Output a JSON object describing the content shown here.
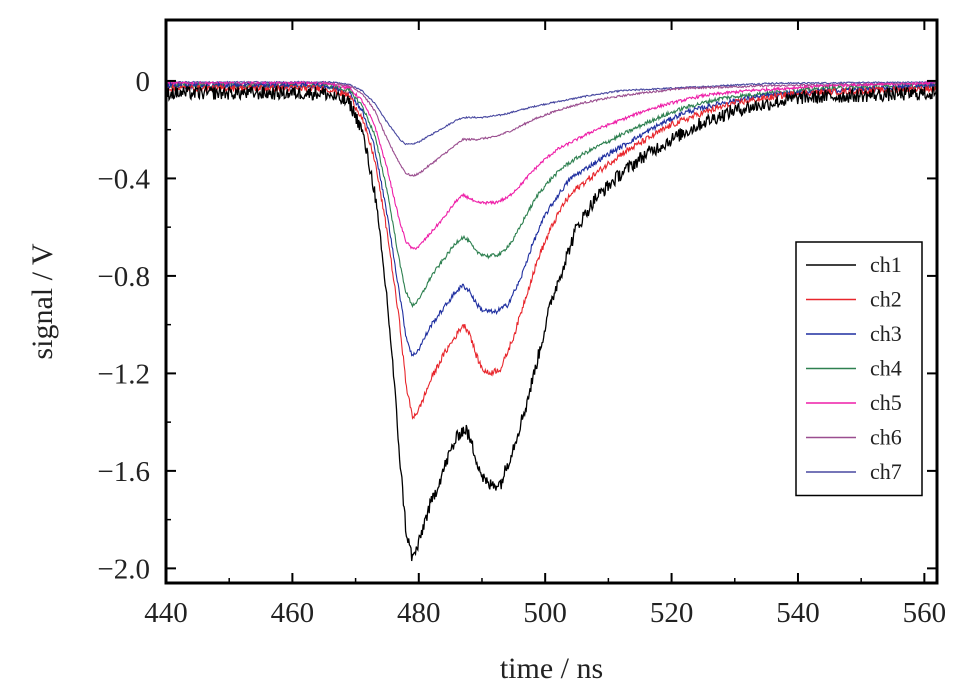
{
  "chart_data": {
    "type": "line",
    "xlabel": "time / ns",
    "ylabel": "signal / V",
    "xlim": [
      440,
      562
    ],
    "ylim": [
      -2.06,
      0.25
    ],
    "x_ticks": [
      440,
      460,
      480,
      500,
      520,
      540,
      560
    ],
    "x_tick_labels": [
      "440",
      "460",
      "480",
      "500",
      "520",
      "540",
      "560"
    ],
    "y_ticks": [
      0,
      -0.4,
      -0.8,
      -1.2,
      -1.6,
      -2.0
    ],
    "y_tick_labels": [
      "0",
      "−0.4",
      "−0.8",
      "−1.2",
      "−1.6",
      "−2.0"
    ],
    "grid": false,
    "legend_position": "right",
    "series": [
      {
        "name": "ch1",
        "color": "#000000",
        "noise": 0.028,
        "points": [
          [
            440,
            -0.05
          ],
          [
            465,
            -0.05
          ],
          [
            469,
            -0.09
          ],
          [
            471,
            -0.2
          ],
          [
            473,
            -0.45
          ],
          [
            475,
            -0.9
          ],
          [
            476,
            -1.2
          ],
          [
            477,
            -1.55
          ],
          [
            478,
            -1.85
          ],
          [
            479,
            -1.96
          ],
          [
            480,
            -1.9
          ],
          [
            481,
            -1.8
          ],
          [
            483,
            -1.66
          ],
          [
            485,
            -1.52
          ],
          [
            486.5,
            -1.44
          ],
          [
            487.5,
            -1.43
          ],
          [
            488.5,
            -1.5
          ],
          [
            490,
            -1.62
          ],
          [
            491,
            -1.66
          ],
          [
            493,
            -1.65
          ],
          [
            495,
            -1.5
          ],
          [
            497,
            -1.33
          ],
          [
            499,
            -1.12
          ],
          [
            501,
            -0.9
          ],
          [
            503,
            -0.75
          ],
          [
            505,
            -0.6
          ],
          [
            508,
            -0.48
          ],
          [
            512,
            -0.38
          ],
          [
            516,
            -0.3
          ],
          [
            520,
            -0.24
          ],
          [
            525,
            -0.17
          ],
          [
            530,
            -0.12
          ],
          [
            540,
            -0.07
          ],
          [
            550,
            -0.06
          ],
          [
            562,
            -0.05
          ]
        ]
      },
      {
        "name": "ch2",
        "color": "#e8262c",
        "noise": 0.013,
        "points": [
          [
            440,
            -0.03
          ],
          [
            465,
            -0.03
          ],
          [
            469,
            -0.06
          ],
          [
            471,
            -0.15
          ],
          [
            473,
            -0.32
          ],
          [
            475,
            -0.62
          ],
          [
            477,
            -1.0
          ],
          [
            478,
            -1.25
          ],
          [
            479,
            -1.38
          ],
          [
            480,
            -1.35
          ],
          [
            482,
            -1.22
          ],
          [
            484,
            -1.12
          ],
          [
            486,
            -1.04
          ],
          [
            487,
            -1.0
          ],
          [
            488,
            -1.03
          ],
          [
            489,
            -1.12
          ],
          [
            490,
            -1.18
          ],
          [
            491,
            -1.2
          ],
          [
            493,
            -1.18
          ],
          [
            495,
            -1.05
          ],
          [
            497,
            -0.88
          ],
          [
            499,
            -0.72
          ],
          [
            501,
            -0.6
          ],
          [
            503,
            -0.5
          ],
          [
            505,
            -0.44
          ],
          [
            508,
            -0.38
          ],
          [
            512,
            -0.3
          ],
          [
            516,
            -0.24
          ],
          [
            520,
            -0.18
          ],
          [
            525,
            -0.13
          ],
          [
            530,
            -0.09
          ],
          [
            540,
            -0.05
          ],
          [
            562,
            -0.03
          ]
        ]
      },
      {
        "name": "ch3",
        "color": "#1f2fa0",
        "noise": 0.01,
        "points": [
          [
            440,
            -0.02
          ],
          [
            465,
            -0.02
          ],
          [
            469,
            -0.05
          ],
          [
            471,
            -0.12
          ],
          [
            473,
            -0.27
          ],
          [
            475,
            -0.55
          ],
          [
            477,
            -0.88
          ],
          [
            478,
            -1.05
          ],
          [
            479,
            -1.13
          ],
          [
            480,
            -1.1
          ],
          [
            482,
            -1.0
          ],
          [
            484,
            -0.93
          ],
          [
            486,
            -0.86
          ],
          [
            487,
            -0.84
          ],
          [
            488,
            -0.86
          ],
          [
            489,
            -0.91
          ],
          [
            490,
            -0.94
          ],
          [
            492,
            -0.95
          ],
          [
            494,
            -0.92
          ],
          [
            496,
            -0.82
          ],
          [
            498,
            -0.67
          ],
          [
            500,
            -0.55
          ],
          [
            502,
            -0.47
          ],
          [
            504,
            -0.4
          ],
          [
            507,
            -0.35
          ],
          [
            510,
            -0.3
          ],
          [
            514,
            -0.24
          ],
          [
            518,
            -0.18
          ],
          [
            522,
            -0.13
          ],
          [
            528,
            -0.09
          ],
          [
            535,
            -0.06
          ],
          [
            545,
            -0.04
          ],
          [
            562,
            -0.02
          ]
        ]
      },
      {
        "name": "ch4",
        "color": "#2e8050",
        "noise": 0.008,
        "points": [
          [
            440,
            -0.02
          ],
          [
            465,
            -0.02
          ],
          [
            469,
            -0.04
          ],
          [
            471,
            -0.1
          ],
          [
            473,
            -0.22
          ],
          [
            475,
            -0.45
          ],
          [
            477,
            -0.75
          ],
          [
            478,
            -0.87
          ],
          [
            479,
            -0.92
          ],
          [
            480,
            -0.9
          ],
          [
            482,
            -0.8
          ],
          [
            484,
            -0.73
          ],
          [
            486,
            -0.66
          ],
          [
            487,
            -0.64
          ],
          [
            488,
            -0.66
          ],
          [
            489,
            -0.7
          ],
          [
            491,
            -0.72
          ],
          [
            493,
            -0.71
          ],
          [
            495,
            -0.65
          ],
          [
            497,
            -0.55
          ],
          [
            499,
            -0.46
          ],
          [
            501,
            -0.4
          ],
          [
            503,
            -0.35
          ],
          [
            506,
            -0.3
          ],
          [
            509,
            -0.26
          ],
          [
            513,
            -0.21
          ],
          [
            517,
            -0.16
          ],
          [
            522,
            -0.11
          ],
          [
            528,
            -0.07
          ],
          [
            535,
            -0.05
          ],
          [
            545,
            -0.03
          ],
          [
            562,
            -0.02
          ]
        ]
      },
      {
        "name": "ch5",
        "color": "#ee1fa8",
        "noise": 0.006,
        "points": [
          [
            440,
            -0.01
          ],
          [
            465,
            -0.01
          ],
          [
            469,
            -0.03
          ],
          [
            471,
            -0.08
          ],
          [
            473,
            -0.18
          ],
          [
            475,
            -0.36
          ],
          [
            477,
            -0.58
          ],
          [
            478,
            -0.66
          ],
          [
            479,
            -0.69
          ],
          [
            480,
            -0.68
          ],
          [
            482,
            -0.62
          ],
          [
            484,
            -0.56
          ],
          [
            486,
            -0.49
          ],
          [
            487,
            -0.47
          ],
          [
            488,
            -0.48
          ],
          [
            489,
            -0.5
          ],
          [
            492,
            -0.5
          ],
          [
            494,
            -0.48
          ],
          [
            496,
            -0.43
          ],
          [
            498,
            -0.37
          ],
          [
            500,
            -0.32
          ],
          [
            502,
            -0.28
          ],
          [
            505,
            -0.24
          ],
          [
            508,
            -0.2
          ],
          [
            512,
            -0.16
          ],
          [
            516,
            -0.12
          ],
          [
            520,
            -0.09
          ],
          [
            525,
            -0.06
          ],
          [
            532,
            -0.04
          ],
          [
            545,
            -0.02
          ],
          [
            562,
            -0.01
          ]
        ]
      },
      {
        "name": "ch6",
        "color": "#9a4e8f",
        "noise": 0.004,
        "points": [
          [
            440,
            -0.01
          ],
          [
            466,
            -0.01
          ],
          [
            469,
            -0.02
          ],
          [
            471,
            -0.05
          ],
          [
            473,
            -0.12
          ],
          [
            475,
            -0.24
          ],
          [
            477,
            -0.34
          ],
          [
            478,
            -0.38
          ],
          [
            479,
            -0.39
          ],
          [
            480,
            -0.38
          ],
          [
            482,
            -0.34
          ],
          [
            484,
            -0.3
          ],
          [
            486,
            -0.26
          ],
          [
            487,
            -0.24
          ],
          [
            489,
            -0.24
          ],
          [
            492,
            -0.23
          ],
          [
            495,
            -0.2
          ],
          [
            498,
            -0.16
          ],
          [
            502,
            -0.12
          ],
          [
            506,
            -0.09
          ],
          [
            510,
            -0.07
          ],
          [
            515,
            -0.05
          ],
          [
            522,
            -0.03
          ],
          [
            535,
            -0.02
          ],
          [
            562,
            -0.01
          ]
        ]
      },
      {
        "name": "ch7",
        "color": "#4848a0",
        "noise": 0.003,
        "points": [
          [
            440,
            -0.005
          ],
          [
            466,
            -0.005
          ],
          [
            469,
            -0.015
          ],
          [
            471,
            -0.04
          ],
          [
            473,
            -0.09
          ],
          [
            475,
            -0.17
          ],
          [
            477,
            -0.24
          ],
          [
            478,
            -0.26
          ],
          [
            479,
            -0.26
          ],
          [
            480,
            -0.25
          ],
          [
            482,
            -0.22
          ],
          [
            484,
            -0.19
          ],
          [
            486,
            -0.16
          ],
          [
            487,
            -0.15
          ],
          [
            490,
            -0.15
          ],
          [
            493,
            -0.14
          ],
          [
            496,
            -0.12
          ],
          [
            499,
            -0.1
          ],
          [
            503,
            -0.08
          ],
          [
            507,
            -0.06
          ],
          [
            512,
            -0.04
          ],
          [
            520,
            -0.03
          ],
          [
            535,
            -0.01
          ],
          [
            562,
            -0.005
          ]
        ]
      }
    ]
  }
}
